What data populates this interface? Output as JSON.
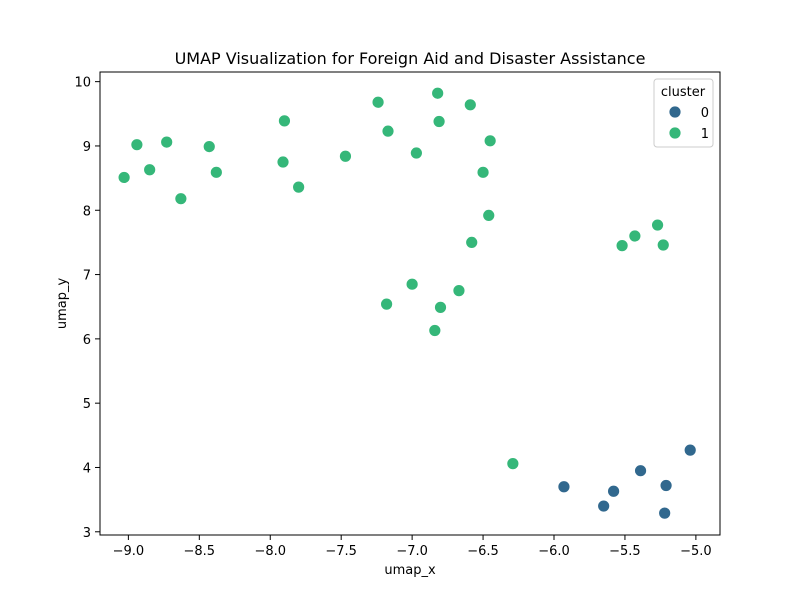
{
  "chart_data": {
    "type": "scatter",
    "title": "UMAP Visualization for Foreign Aid and Disaster Assistance",
    "xlabel": "umap_x",
    "ylabel": "umap_y",
    "xlim": [
      -9.2,
      -4.83
    ],
    "ylim": [
      2.95,
      10.15
    ],
    "xticks": [
      -9.0,
      -8.5,
      -8.0,
      -7.5,
      -7.0,
      -6.5,
      -6.0,
      -5.5,
      -5.0
    ],
    "xtick_labels": [
      "−9.0",
      "−8.5",
      "−8.0",
      "−7.5",
      "−7.0",
      "−6.5",
      "−6.0",
      "−5.5",
      "−5.0"
    ],
    "yticks": [
      3,
      4,
      5,
      6,
      7,
      8,
      9,
      10
    ],
    "ytick_labels": [
      "3",
      "4",
      "5",
      "6",
      "7",
      "8",
      "9",
      "10"
    ],
    "grid": false,
    "legend": {
      "title": "cluster",
      "placement": "top-right",
      "entries": [
        {
          "label": "0",
          "color": "#31688e"
        },
        {
          "label": "1",
          "color": "#35b779"
        }
      ]
    },
    "series": [
      {
        "name": "0",
        "color": "#31688e",
        "points": [
          {
            "x": -5.93,
            "y": 3.7
          },
          {
            "x": -5.65,
            "y": 3.4
          },
          {
            "x": -5.58,
            "y": 3.63
          },
          {
            "x": -5.39,
            "y": 3.95
          },
          {
            "x": -5.21,
            "y": 3.72
          },
          {
            "x": -5.22,
            "y": 3.29
          },
          {
            "x": -5.04,
            "y": 4.27
          }
        ]
      },
      {
        "name": "1",
        "color": "#35b779",
        "points": [
          {
            "x": -9.03,
            "y": 8.51
          },
          {
            "x": -8.94,
            "y": 9.02
          },
          {
            "x": -8.85,
            "y": 8.63
          },
          {
            "x": -8.73,
            "y": 9.06
          },
          {
            "x": -8.63,
            "y": 8.18
          },
          {
            "x": -8.43,
            "y": 8.99
          },
          {
            "x": -8.38,
            "y": 8.59
          },
          {
            "x": -7.9,
            "y": 9.39
          },
          {
            "x": -7.91,
            "y": 8.75
          },
          {
            "x": -7.8,
            "y": 8.36
          },
          {
            "x": -7.47,
            "y": 8.84
          },
          {
            "x": -7.24,
            "y": 9.68
          },
          {
            "x": -7.17,
            "y": 9.23
          },
          {
            "x": -6.97,
            "y": 8.89
          },
          {
            "x": -6.82,
            "y": 9.82
          },
          {
            "x": -6.81,
            "y": 9.38
          },
          {
            "x": -6.59,
            "y": 9.64
          },
          {
            "x": -6.45,
            "y": 9.08
          },
          {
            "x": -6.5,
            "y": 8.59
          },
          {
            "x": -6.46,
            "y": 7.92
          },
          {
            "x": -6.58,
            "y": 7.5
          },
          {
            "x": -7.0,
            "y": 6.85
          },
          {
            "x": -7.18,
            "y": 6.54
          },
          {
            "x": -6.8,
            "y": 6.49
          },
          {
            "x": -6.67,
            "y": 6.75
          },
          {
            "x": -6.84,
            "y": 6.13
          },
          {
            "x": -5.52,
            "y": 7.45
          },
          {
            "x": -5.43,
            "y": 7.6
          },
          {
            "x": -5.27,
            "y": 7.77
          },
          {
            "x": -5.23,
            "y": 7.46
          },
          {
            "x": -6.29,
            "y": 4.06
          }
        ]
      }
    ]
  }
}
